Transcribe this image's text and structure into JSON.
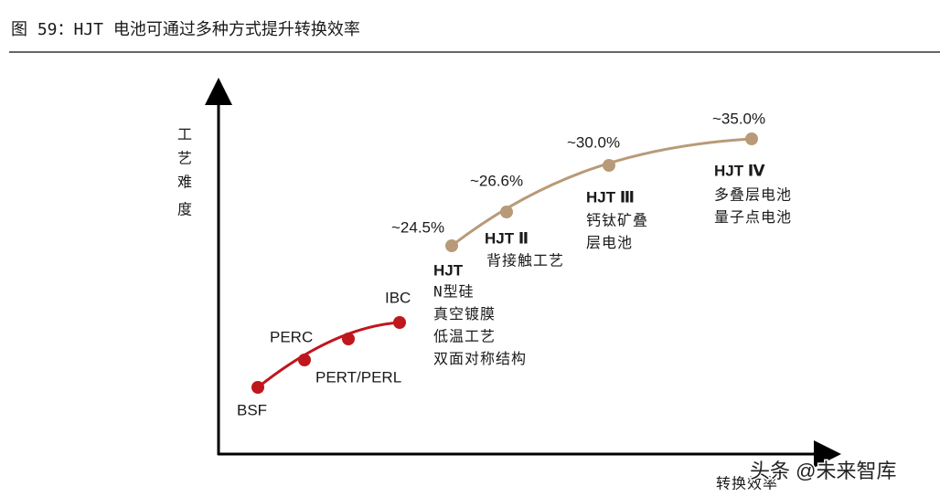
{
  "header": {
    "title": "图 59：HJT 电池可通过多种方式提升转换效率"
  },
  "axes": {
    "y_label": [
      "工",
      "艺",
      "难",
      "度"
    ],
    "x_label": "转换效率"
  },
  "red_nodes": [
    {
      "label": "BSF"
    },
    {
      "label": "PERC"
    },
    {
      "label": "PERT/PERL"
    },
    {
      "label": "IBC"
    }
  ],
  "hjt_nodes": [
    {
      "efficiency": "~24.5%",
      "name": "HJT",
      "details": [
        "N型硅",
        "真空镀膜",
        "低温工艺",
        "双面对称结构"
      ]
    },
    {
      "efficiency": "~26.6%",
      "name": "HJT Ⅱ",
      "details": [
        "背接触工艺"
      ]
    },
    {
      "efficiency": "~30.0%",
      "name": "HJT Ⅲ",
      "details": [
        "钙钛矿叠",
        "层电池"
      ]
    },
    {
      "efficiency": "~35.0%",
      "name": "HJT Ⅳ",
      "details": [
        "多叠层电池",
        "量子点电池"
      ]
    }
  ],
  "watermark": "头条 @未来智库"
}
